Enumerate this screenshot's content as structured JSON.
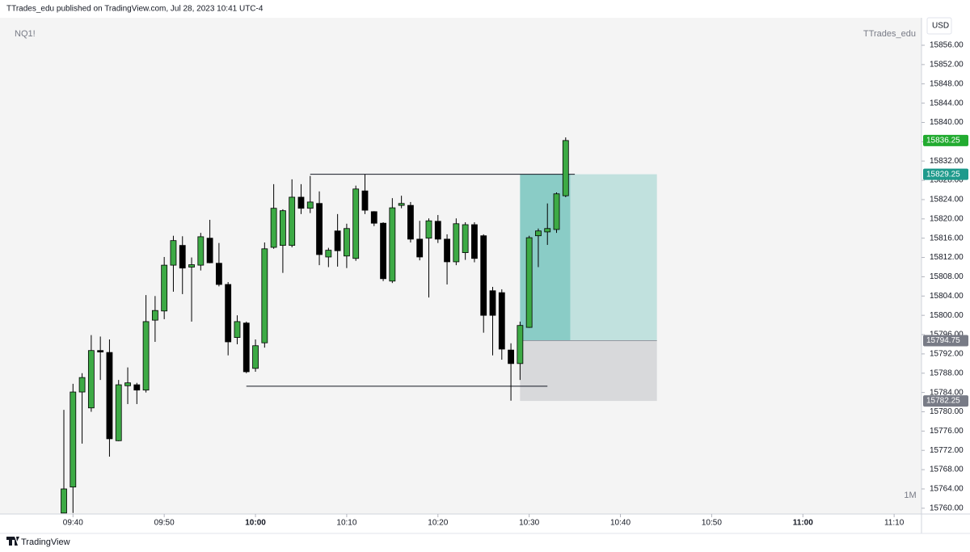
{
  "chart_data": {
    "type": "candlestick",
    "header": "TTrades_edu published on TradingView.com, Jul 28, 2023 10:41 UTC-4",
    "title": "NQ1!",
    "watermark": "TTrades_edu",
    "currency": "USD",
    "interval": "1M",
    "footer": "TradingView",
    "up_color": "#3daa45",
    "down_color": "#000000",
    "x": [
      "09:39",
      "09:40",
      "09:41",
      "09:42",
      "09:43",
      "09:44",
      "09:45",
      "09:46",
      "09:47",
      "09:48",
      "09:49",
      "09:50",
      "09:51",
      "09:52",
      "09:53",
      "09:54",
      "09:55",
      "09:56",
      "09:57",
      "09:58",
      "09:59",
      "10:00",
      "10:01",
      "10:02",
      "10:03",
      "10:04",
      "10:05",
      "10:06",
      "10:07",
      "10:08",
      "10:09",
      "10:10",
      "10:11",
      "10:12",
      "10:13",
      "10:14",
      "10:15",
      "10:16",
      "10:17",
      "10:18",
      "10:19",
      "10:20",
      "10:21",
      "10:22",
      "10:23",
      "10:24",
      "10:25",
      "10:26",
      "10:27",
      "10:28",
      "10:29",
      "10:30",
      "10:31",
      "10:32",
      "10:33",
      "10:34"
    ],
    "open": [
      15759,
      15764.4,
      15784.1,
      15780.8,
      15792.7,
      15792.3,
      15774.0,
      15785.4,
      15785.6,
      15784.5,
      15799.0,
      15800.9,
      15810.4,
      15814.5,
      15810.0,
      15810.4,
      15816.0,
      15810.8,
      15806.4,
      15795.4,
      15798.4,
      15789.0,
      15794.3,
      15814.1,
      15814.5,
      15814.5,
      15824.5,
      15822.2,
      15823.2,
      15812.1,
      15817.5,
      15812.3,
      15811.8,
      15825.8,
      15821.5,
      15819.1,
      15807.1,
      15822.8,
      15822.8,
      15815.8,
      15816.0,
      15819.5,
      15815.8,
      15811.1,
      15813.0,
      15818.8,
      15816.5,
      15805.1,
      15804.7,
      15792.8,
      15790.0,
      15797.5,
      15816.5,
      15817.3,
      15817.8,
      15824.8
    ],
    "high": [
      15780.4,
      15785.8,
      15788.0,
      15795.9,
      15795.6,
      15795.0,
      15786.6,
      15789.2,
      15786.0,
      15804.2,
      15804.0,
      15812.1,
      15816.5,
      15816.4,
      15812.0,
      15817.1,
      15819.8,
      15815.0,
      15806.9,
      15800.0,
      15798.7,
      15795.0,
      15815.1,
      15827.2,
      15822.0,
      15828.2,
      15827.2,
      15828.9,
      15825.7,
      15814.0,
      15821.0,
      15819.0,
      15826.9,
      15829.2,
      15821.6,
      15819.3,
      15824.3,
      15824.8,
      15823.5,
      15819.6,
      15820.1,
      15820.8,
      15816.8,
      15820.1,
      15819.3,
      15819.3,
      15816.8,
      15805.9,
      15805.4,
      15794.2,
      15798.7,
      15816.5,
      15818.0,
      15823.2,
      15825.5,
      15836.9
    ],
    "low": [
      15759,
      15759,
      15773.4,
      15780.0,
      15786.6,
      15770.7,
      15773.9,
      15781.6,
      15781.6,
      15784.0,
      15794.5,
      15799.2,
      15804.9,
      15804.4,
      15798.7,
      15809.3,
      15810.8,
      15806.0,
      15791.7,
      15794.0,
      15788.0,
      15788.3,
      15793.3,
      15813.8,
      15808.8,
      15814.1,
      15821.0,
      15821.2,
      15810.4,
      15810.0,
      15810.1,
      15809.8,
      15811.3,
      15821.0,
      15818.5,
      15807.1,
      15806.7,
      15822.2,
      15815.1,
      15811.4,
      15803.7,
      15815.0,
      15806.4,
      15810.4,
      15811.5,
      15811.0,
      15796.4,
      15791.7,
      15790.8,
      15782.3,
      15786.6,
      15797.4,
      15810.0,
      15814.6,
      15817.1,
      15824.5
    ],
    "close": [
      15764,
      15784.1,
      15787.1,
      15792.7,
      15792.4,
      15774.4,
      15785.6,
      15786.0,
      15784.5,
      15798.7,
      15801.0,
      15810.4,
      15815.5,
      15809.8,
      15810.5,
      15816.3,
      15810.9,
      15806.4,
      15794.5,
      15798.7,
      15788.3,
      15793.7,
      15813.8,
      15822.2,
      15821.7,
      15824.5,
      15822.2,
      15823.5,
      15812.6,
      15813.5,
      15813.4,
      15818.0,
      15826.2,
      15821.8,
      15819.1,
      15807.6,
      15822.3,
      15823.2,
      15815.8,
      15812.1,
      15819.6,
      15815.8,
      15811.1,
      15819.0,
      15818.8,
      15811.8,
      15800.0,
      15800.0,
      15793.0,
      15790.0,
      15797.9,
      15816.1,
      15817.5,
      15818.0,
      15825.2,
      15836.25
    ],
    "xlim": [
      "09:32",
      "11:13"
    ],
    "xticks": [
      "09:40",
      "09:50",
      "10:00",
      "10:10",
      "10:20",
      "10:30",
      "10:40",
      "10:50",
      "11:00",
      "11:10"
    ],
    "ylim": [
      15758.8,
      15861.7
    ],
    "yticks": [
      {
        "value": 15760,
        "label": "15760.00"
      },
      {
        "value": 15764,
        "label": "15764.00"
      },
      {
        "value": 15768,
        "label": "15768.00"
      },
      {
        "value": 15772,
        "label": "15772.00"
      },
      {
        "value": 15776,
        "label": "15776.00"
      },
      {
        "value": 15780,
        "label": "15780.00"
      },
      {
        "value": 15784,
        "label": "15784.00"
      },
      {
        "value": 15788,
        "label": "15788.00"
      },
      {
        "value": 15792,
        "label": "15792.00"
      },
      {
        "value": 15796,
        "label": "15796.00"
      },
      {
        "value": 15800,
        "label": "15800.00"
      },
      {
        "value": 15804,
        "label": "15804.00"
      },
      {
        "value": 15808,
        "label": "15808.00"
      },
      {
        "value": 15812,
        "label": "15812.00"
      },
      {
        "value": 15816,
        "label": "15816.00"
      },
      {
        "value": 15820,
        "label": "15820.00"
      },
      {
        "value": 15824,
        "label": "15824.00"
      },
      {
        "value": 15828,
        "label": "15828.00"
      },
      {
        "value": 15832,
        "label": "15832.00"
      },
      {
        "value": 15836,
        "label": "15836.00"
      },
      {
        "value": 15840,
        "label": "15840.00"
      },
      {
        "value": 15844,
        "label": "15844.00"
      },
      {
        "value": 15848,
        "label": "15848.00"
      },
      {
        "value": 15852,
        "label": "15852.00"
      },
      {
        "value": 15856,
        "label": "15856.00"
      }
    ],
    "levels": [
      {
        "value": 15829.25,
        "start": "10:06",
        "end": "10:35"
      },
      {
        "value": 15785.3,
        "start": "09:59",
        "end": "10:32"
      }
    ],
    "position": {
      "start": "10:29",
      "end": "10:44",
      "target": 15829.25,
      "entry": 15794.75,
      "stop": 15782.25
    },
    "price_markers": [
      {
        "value": 15836.25,
        "color": "#22ab30"
      },
      {
        "value": 15829.25,
        "color": "#1e9a8c"
      },
      {
        "value": 15794.75,
        "color": "#787b86"
      },
      {
        "value": 15782.25,
        "color": "#787b86"
      }
    ]
  }
}
